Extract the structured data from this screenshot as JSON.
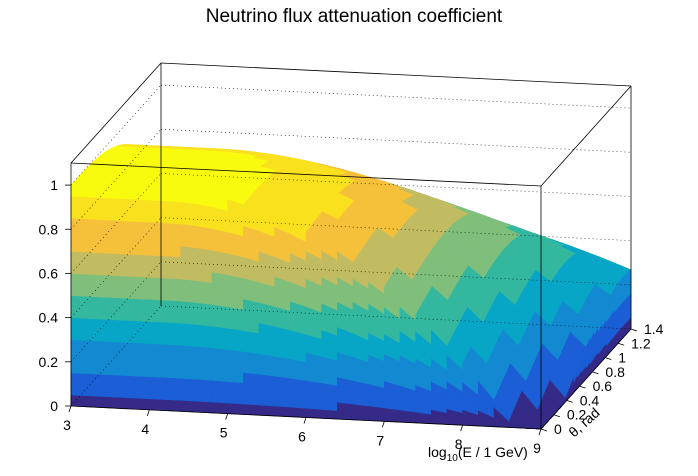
{
  "chart_data": {
    "type": "surface",
    "title": "Neutrino flux attenuation coefficient",
    "xlabel": {
      "prefix": "log",
      "sub": "10",
      "rest": "(E / 1 GeV)"
    },
    "ylabel": "θ, rad",
    "xlim": [
      3,
      9
    ],
    "ylim": [
      0,
      1.4
    ],
    "zlim": [
      0,
      1.1
    ],
    "x_ticks": [
      3,
      4,
      5,
      6,
      7,
      8,
      9
    ],
    "y_ticks": [
      0,
      0.2,
      0.4,
      0.6,
      0.8,
      1,
      1.2,
      1.4
    ],
    "y_tick_labels": [
      "0",
      "0.2",
      "0.4",
      "0.6",
      "0.8",
      "1",
      "1.2",
      "1.4"
    ],
    "z_ticks": [
      0,
      0.2,
      0.4,
      0.6,
      0.8,
      1
    ],
    "z_tick_labels": [
      "0",
      "0.2",
      "0.4",
      "0.6",
      "0.8",
      "1"
    ],
    "surface_description": "Attenuation ≈1 for low energy and small angle; decreases toward 0 at high energy (log10 E ≈ 9) and large angle (θ ≈ 1.4 rad)",
    "palette": [
      "#352a87",
      "#1b5ed6",
      "#1389d2",
      "#08a6c6",
      "#33b89f",
      "#7fbf7b",
      "#c1bc62",
      "#f6c13a",
      "#f9e11e",
      "#f9fb0e"
    ],
    "grid": true
  }
}
